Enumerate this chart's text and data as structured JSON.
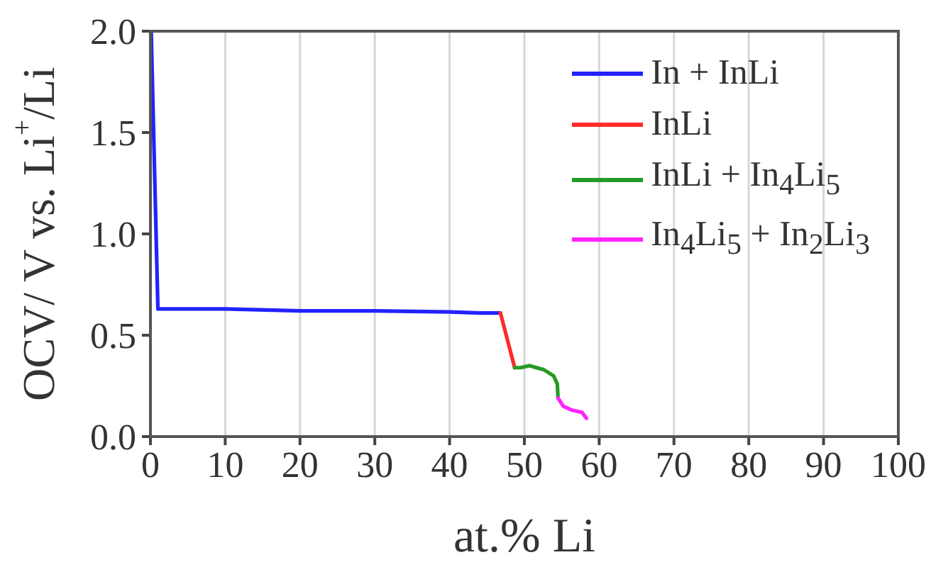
{
  "chart_data": {
    "type": "line",
    "xlabel": "at.% Li",
    "ylabel": "OCV/ V vs. Li$^{+}$/Li",
    "xlim": [
      0,
      100
    ],
    "xticks": [
      0,
      10,
      20,
      30,
      40,
      50,
      60,
      70,
      80,
      90,
      100
    ],
    "ylim": [
      0,
      2
    ],
    "yticks": [
      {
        "value": 0,
        "label": "0.0"
      },
      0.5,
      {
        "value": 1,
        "label": "1.0"
      },
      1.5,
      {
        "value": 2,
        "label": "2.0"
      }
    ],
    "grid": "x",
    "legend": "top right",
    "line_style": "solid",
    "series": [
      {
        "name": "In + InLi",
        "color": "#2222ff",
        "x": [
          0.1,
          1.0,
          5,
          10,
          20,
          30,
          40,
          44,
          46.8
        ],
        "values": [
          2.0,
          0.63,
          0.63,
          0.63,
          0.62,
          0.62,
          0.615,
          0.61,
          0.61
        ]
      },
      {
        "name": "InLi",
        "color": "#ff2a2a",
        "x": [
          46.8,
          48.7
        ],
        "values": [
          0.61,
          0.34
        ]
      },
      {
        "name": "InLi + In$_{4}$Li$_{5}$",
        "color": "#259a25",
        "x": [
          48.7,
          49.5,
          50.7,
          52.6,
          53.9,
          54.4,
          54.5
        ],
        "values": [
          0.34,
          0.34,
          0.35,
          0.33,
          0.3,
          0.26,
          0.19
        ]
      },
      {
        "name": "In$_{4}$Li$_{5}$ + In$_{2}$Li$_{3}$",
        "color": "#ff22ff",
        "x": [
          54.5,
          55.2,
          56.4,
          57.7,
          58.3
        ],
        "values": [
          0.19,
          0.15,
          0.13,
          0.12,
          0.09
        ]
      }
    ]
  }
}
